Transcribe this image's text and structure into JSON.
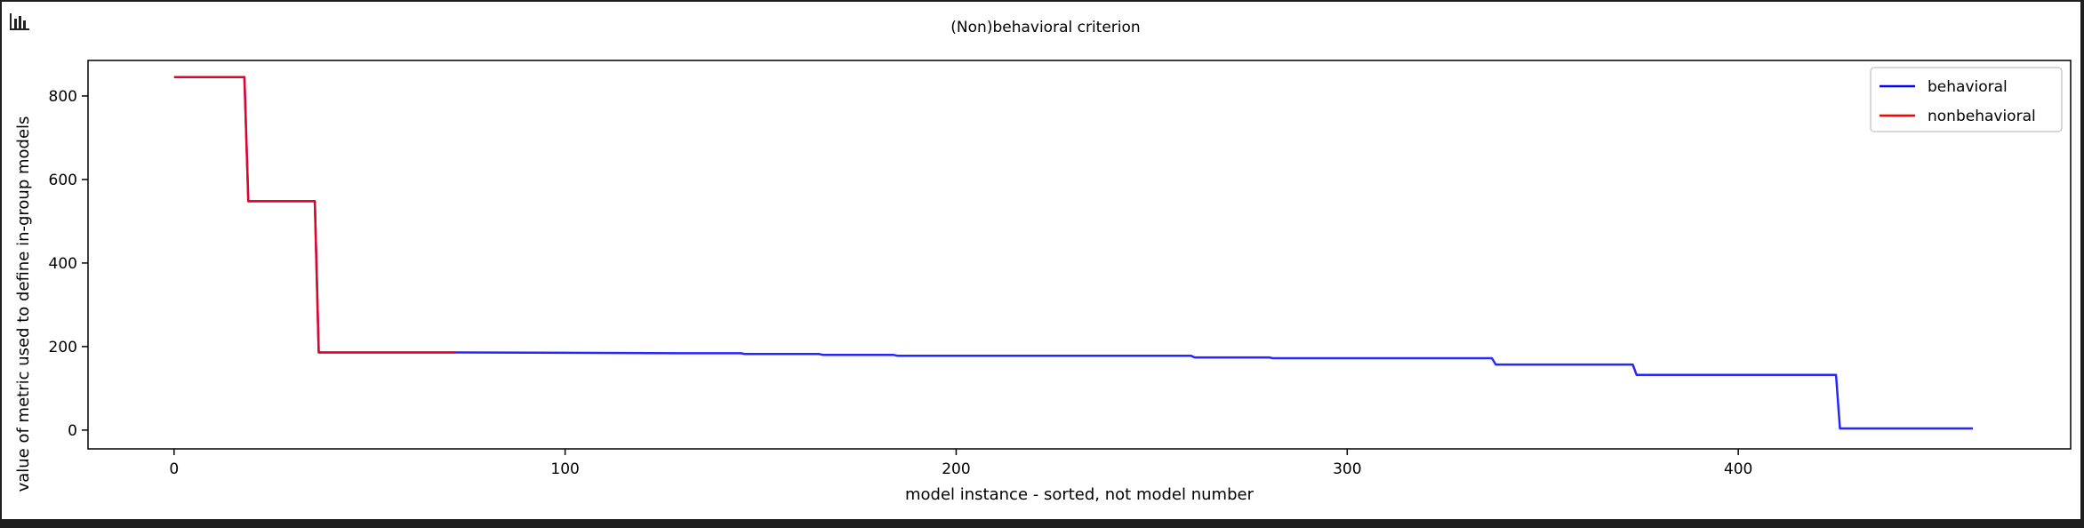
{
  "chart_data": {
    "type": "line",
    "title": "(Non)behavioral criterion",
    "xlabel": "model instance - sorted, not model number",
    "ylabel": "value of metric used to define in-group models",
    "xlim": [
      -22,
      485
    ],
    "ylim": [
      -45,
      885
    ],
    "x_ticks": [
      0,
      100,
      200,
      300,
      400
    ],
    "y_ticks": [
      0,
      200,
      400,
      600,
      800
    ],
    "grid": false,
    "legend_position": "top-right",
    "series": [
      {
        "name": "behavioral",
        "color": "#0000ff",
        "x": [
          0,
          18,
          19,
          36,
          37,
          73,
          130,
          145,
          146,
          165,
          166,
          184,
          185,
          260,
          261,
          280,
          281,
          337,
          338,
          373,
          374,
          425,
          426,
          460
        ],
        "y": [
          845,
          845,
          548,
          548,
          186,
          186,
          184,
          184,
          182,
          182,
          180,
          180,
          178,
          178,
          174,
          174,
          172,
          172,
          157,
          157,
          132,
          132,
          4,
          4
        ]
      },
      {
        "name": "nonbehavioral",
        "color": "#ff0000",
        "x": [
          0,
          18,
          19,
          36,
          37,
          72
        ],
        "y": [
          845,
          845,
          548,
          548,
          186,
          186
        ]
      }
    ]
  },
  "icons": {
    "chart_toggle": "bar-chart-icon"
  }
}
